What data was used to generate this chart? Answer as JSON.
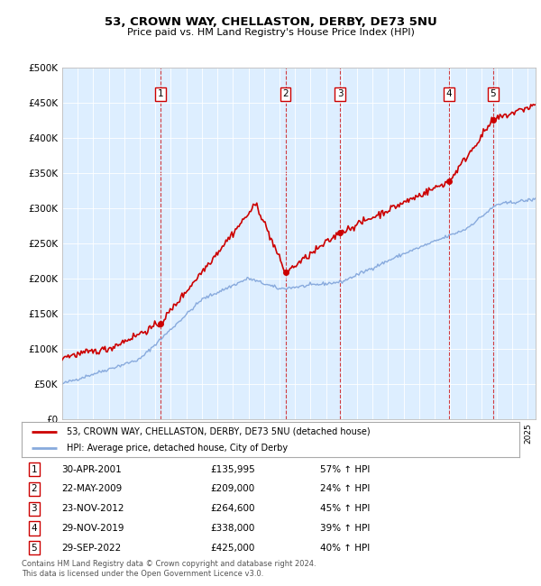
{
  "title1": "53, CROWN WAY, CHELLASTON, DERBY, DE73 5NU",
  "title2": "Price paid vs. HM Land Registry's House Price Index (HPI)",
  "bg_color": "#ddeeff",
  "ylim": [
    0,
    500000
  ],
  "yticks": [
    0,
    50000,
    100000,
    150000,
    200000,
    250000,
    300000,
    350000,
    400000,
    450000,
    500000
  ],
  "ytick_labels": [
    "£0",
    "£50K",
    "£100K",
    "£150K",
    "£200K",
    "£250K",
    "£300K",
    "£350K",
    "£400K",
    "£450K",
    "£500K"
  ],
  "xlim_start": 1995.0,
  "xlim_end": 2025.5,
  "hpi_color": "#88aadd",
  "price_color": "#cc0000",
  "sale_marker_color": "#cc0000",
  "sale_points": [
    {
      "num": 1,
      "year": 2001.33,
      "price": 135995
    },
    {
      "num": 2,
      "year": 2009.38,
      "price": 209000
    },
    {
      "num": 3,
      "year": 2012.9,
      "price": 264600
    },
    {
      "num": 4,
      "year": 2019.92,
      "price": 338000
    },
    {
      "num": 5,
      "year": 2022.75,
      "price": 425000
    }
  ],
  "legend_entries": [
    "53, CROWN WAY, CHELLASTON, DERBY, DE73 5NU (detached house)",
    "HPI: Average price, detached house, City of Derby"
  ],
  "table_rows": [
    {
      "num": 1,
      "date": "30-APR-2001",
      "price": "£135,995",
      "hpi": "57% ↑ HPI"
    },
    {
      "num": 2,
      "date": "22-MAY-2009",
      "price": "£209,000",
      "hpi": "24% ↑ HPI"
    },
    {
      "num": 3,
      "date": "23-NOV-2012",
      "price": "£264,600",
      "hpi": "45% ↑ HPI"
    },
    {
      "num": 4,
      "date": "29-NOV-2019",
      "price": "£338,000",
      "hpi": "39% ↑ HPI"
    },
    {
      "num": 5,
      "date": "29-SEP-2022",
      "price": "£425,000",
      "hpi": "40% ↑ HPI"
    }
  ],
  "footer": "Contains HM Land Registry data © Crown copyright and database right 2024.\nThis data is licensed under the Open Government Licence v3.0.",
  "dashed_line_color": "#cc0000"
}
